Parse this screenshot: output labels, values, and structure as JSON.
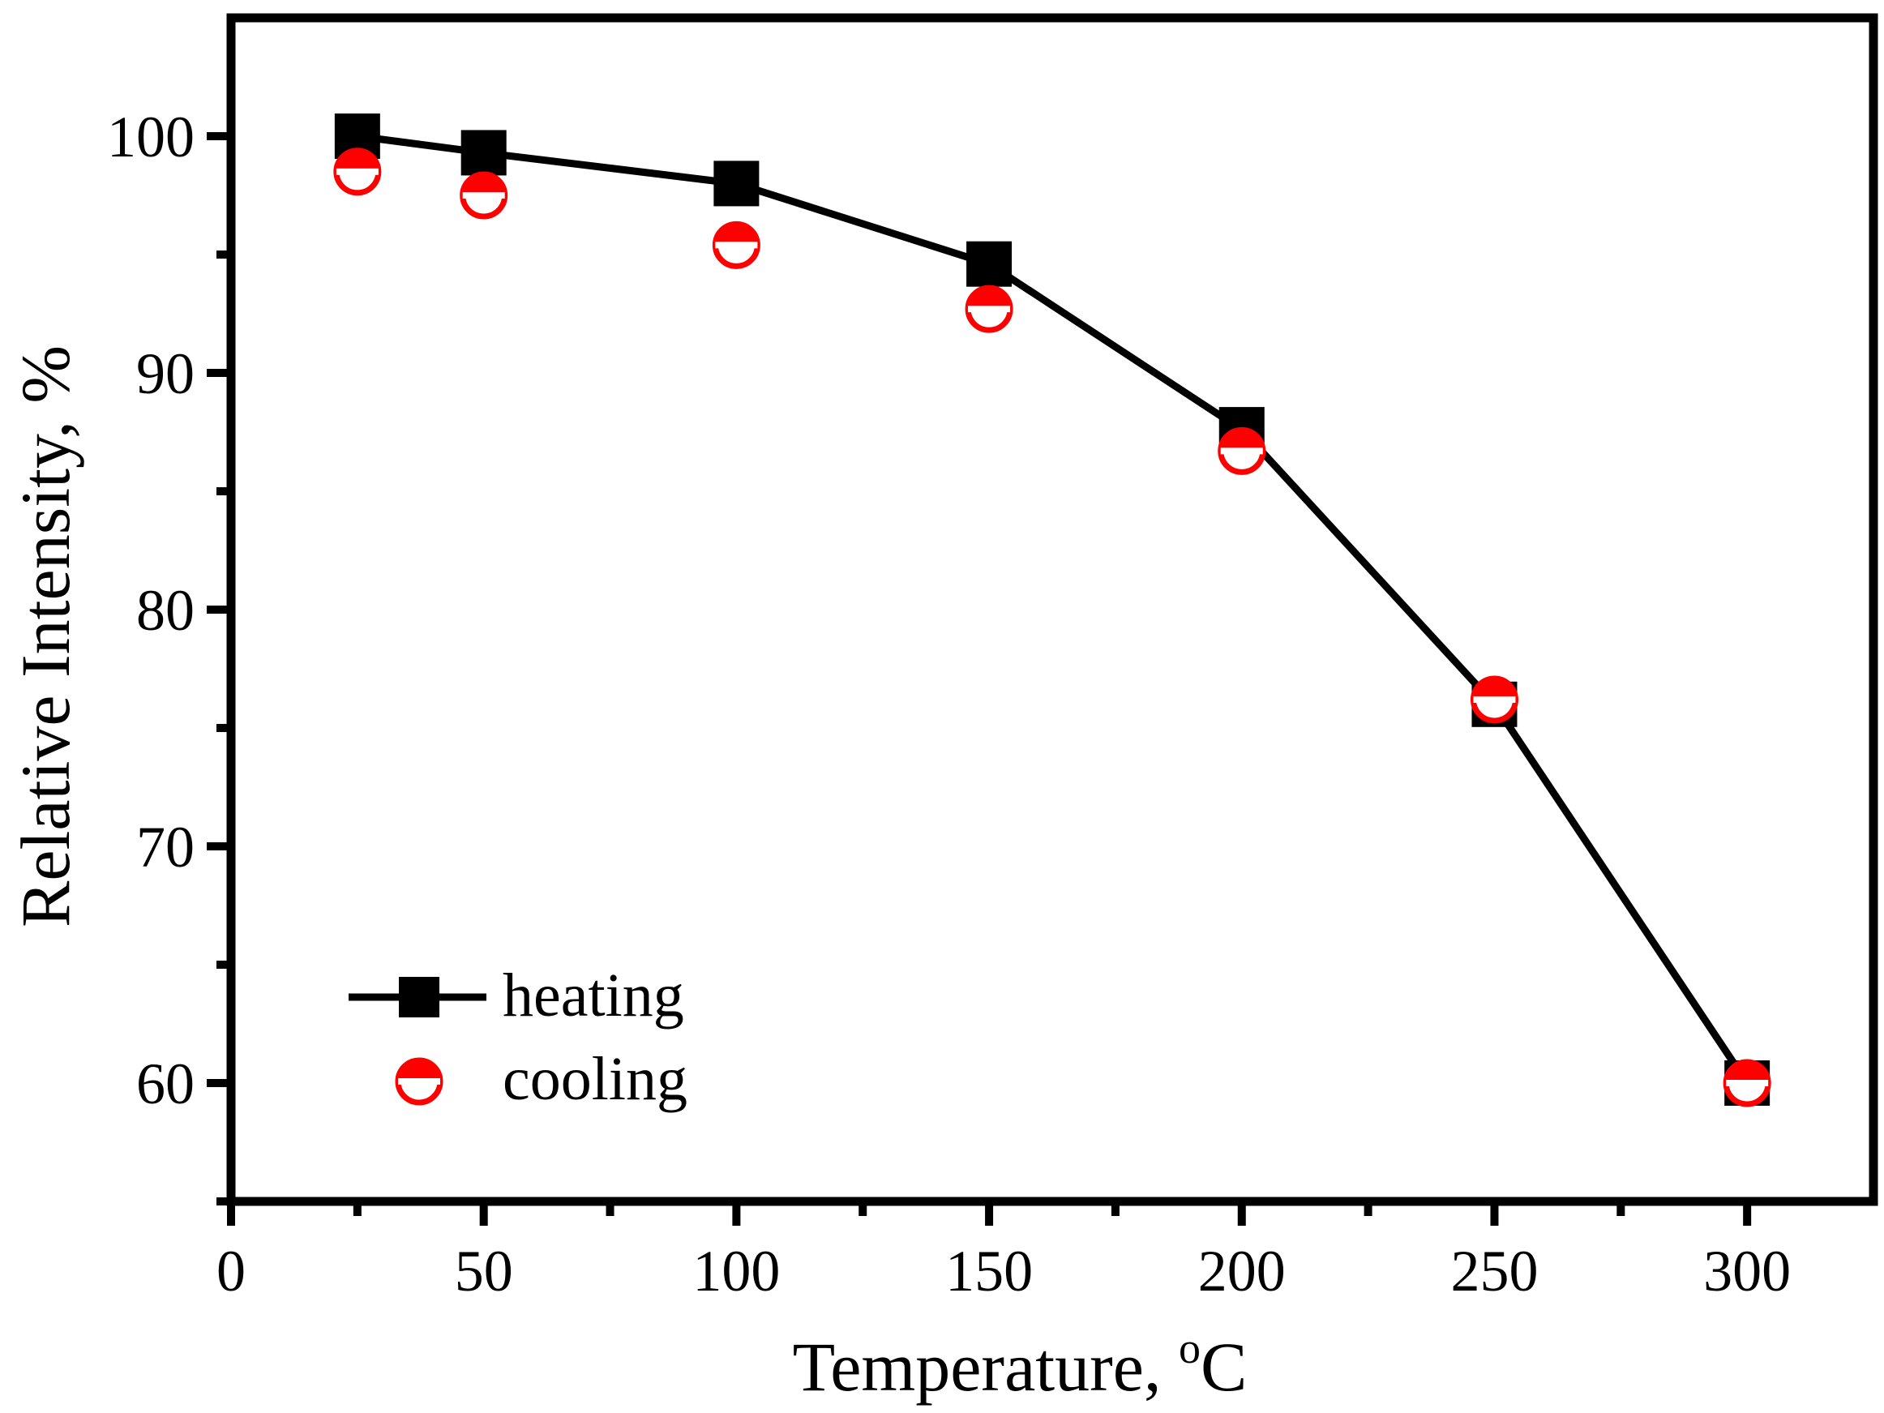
{
  "chart_data": {
    "type": "line",
    "title": "",
    "xlabel": "Temperature, ",
    "xlabel_superscript": "o",
    "xlabel_unit": "C",
    "ylabel": "Relative Intensity, %",
    "xlim": [
      0,
      325
    ],
    "ylim": [
      55,
      105
    ],
    "x_ticks": [
      0,
      50,
      100,
      150,
      200,
      250,
      300
    ],
    "y_ticks": [
      60,
      70,
      80,
      90,
      100
    ],
    "x_minor_ticks": [
      25,
      75,
      125,
      175,
      225,
      275
    ],
    "y_minor_ticks": [
      55,
      65,
      75,
      85,
      95
    ],
    "grid": false,
    "legend_position": "bottom-left",
    "series": [
      {
        "name": "heating",
        "marker": "square",
        "line": true,
        "color": "#000000",
        "x": [
          25,
          50,
          100,
          150,
          200,
          250,
          300
        ],
        "y": [
          100,
          99.3,
          98.0,
          94.6,
          87.6,
          76.0,
          60.0
        ]
      },
      {
        "name": "cooling",
        "marker": "half-filled-circle",
        "line": false,
        "color": "#ff0000",
        "x": [
          25,
          50,
          100,
          150,
          200,
          250,
          300
        ],
        "y": [
          98.5,
          97.5,
          95.4,
          92.7,
          86.7,
          76.2,
          60.0
        ]
      }
    ]
  }
}
